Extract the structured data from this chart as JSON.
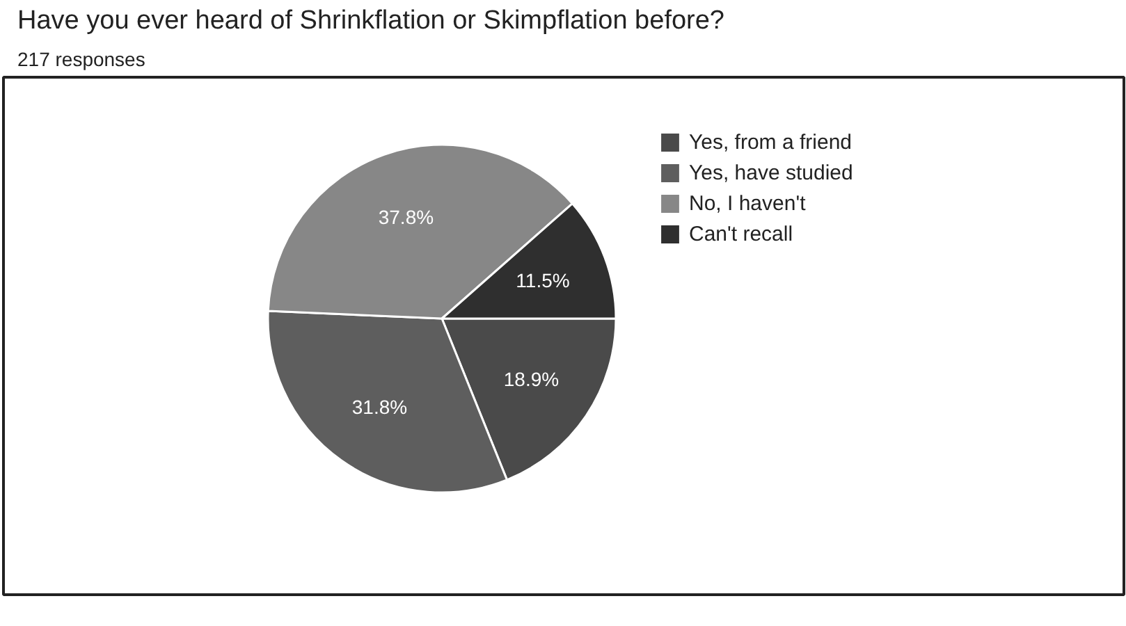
{
  "chart_data": {
    "type": "pie",
    "title": "Have you ever heard of Shrinkflation or Skimpflation before?",
    "subtitle": "217 responses",
    "categories": [
      "Yes, from a friend",
      "Yes, have studied",
      "No, I haven't",
      "Can't recall"
    ],
    "values": [
      18.9,
      31.8,
      37.8,
      11.5
    ],
    "value_labels": [
      "18.9%",
      "31.8%",
      "37.8%",
      "11.5%"
    ],
    "colors": [
      "#4a4a4a",
      "#5e5e5e",
      "#878787",
      "#2f2f2f"
    ],
    "legend": "top right"
  }
}
